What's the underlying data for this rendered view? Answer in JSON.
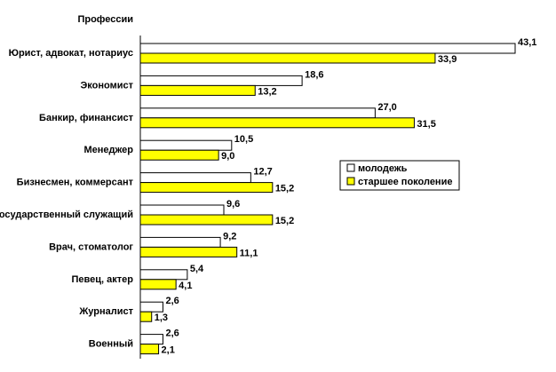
{
  "chart_data": {
    "type": "bar",
    "orientation": "horizontal",
    "header_label": "Профессии",
    "categories": [
      "Юрист, адвокат, нотариус",
      "Экономист",
      "Банкир, финансист",
      "Менеджер",
      "Бизнесмен, коммерсант",
      "Государственный служащий",
      "Врач, стоматолог",
      "Певец, актер",
      "Журналист",
      "Военный"
    ],
    "series": [
      {
        "name": "молодежь",
        "color": "#ffffff",
        "values": [
          43.1,
          18.6,
          27.0,
          10.5,
          12.7,
          9.6,
          9.2,
          5.4,
          2.6,
          2.6
        ],
        "labels": [
          "43,1",
          "18,6",
          "27,0",
          "10,5",
          "12,7",
          "9,6",
          "9,2",
          "5,4",
          "2,6",
          "2,6"
        ]
      },
      {
        "name": "старшее поколение",
        "color": "#ffff00",
        "values": [
          33.9,
          13.2,
          31.5,
          9.0,
          15.2,
          15.2,
          11.1,
          4.1,
          1.3,
          2.1
        ],
        "labels": [
          "33,9",
          "13,2",
          "31,5",
          "9,0",
          "15,2",
          "15,2",
          "11,1",
          "4,1",
          "1,3",
          "2,1"
        ]
      }
    ],
    "xlim": [
      0,
      43.1
    ],
    "grid": false,
    "legend_position": "right"
  }
}
